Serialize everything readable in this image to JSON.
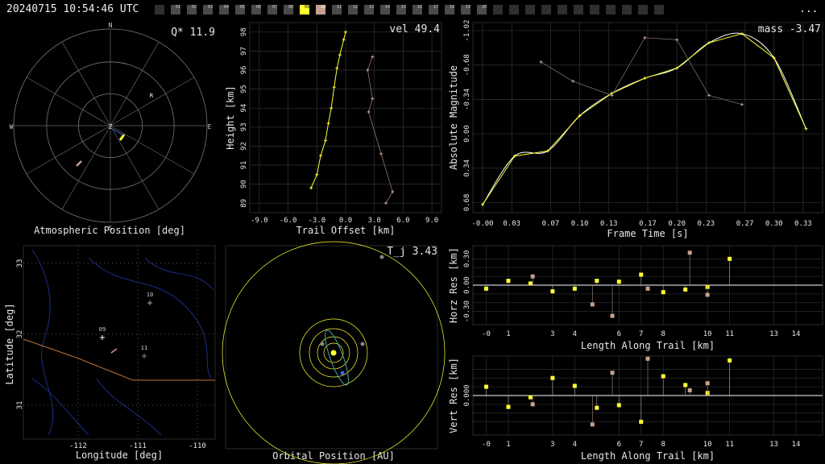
{
  "header": {
    "timestamp": "20240715 10:54:46 UTC",
    "menu_label": "...",
    "stations": [
      "",
      "01",
      "02",
      "03",
      "04",
      "05",
      "06",
      "07",
      "08",
      "09",
      "10",
      "11",
      "12",
      "13",
      "14",
      "15",
      "16",
      "17",
      "18",
      "19",
      "20",
      "",
      "",
      "",
      "",
      "",
      "",
      "",
      "",
      "",
      "",
      ""
    ],
    "stations_active": [
      1,
      2,
      3,
      4,
      5,
      6,
      7,
      8,
      9,
      10,
      11,
      12,
      13,
      14,
      15,
      16,
      17,
      18,
      19,
      20
    ],
    "station_selected": "09",
    "station_selected2": "10"
  },
  "colors": {
    "primary": "#ffff33",
    "secondary": "#c8a090",
    "grid": "#555555",
    "axis": "#dddddd"
  },
  "chart_data": [
    {
      "id": "sky",
      "type": "scatter",
      "title": "Atmospheric Position [deg]",
      "label": "Q* 11.9",
      "compass": [
        "N",
        "E",
        "S",
        "W",
        "Z"
      ],
      "marker": "R"
    },
    {
      "id": "height",
      "type": "line",
      "label": "vel 49.4",
      "xlabel": "Trail Offset [km]",
      "ylabel": "Height [km]",
      "xlim": [
        -10,
        10
      ],
      "ylim": [
        88.5,
        98.5
      ],
      "xticks": [
        "-9.0",
        "-6.0",
        "-3.0",
        "0.0",
        "3.0",
        "6.0",
        "9.0"
      ],
      "yticks": [
        "89",
        "90",
        "91",
        "92",
        "93",
        "94",
        "95",
        "96",
        "97",
        "98"
      ],
      "series": [
        {
          "x": [
            -3.6,
            -3.0,
            -2.6,
            -2.1,
            -1.8,
            -1.5,
            -1.2,
            -0.9,
            -0.6,
            -0.2,
            0.0
          ],
          "y": [
            89.8,
            90.5,
            91.5,
            92.3,
            93.2,
            94.0,
            95.1,
            96.1,
            96.8,
            97.6,
            98.0
          ]
        },
        {
          "x": [
            4.2,
            4.9,
            3.7,
            2.4,
            2.8,
            2.3,
            2.8
          ],
          "y": [
            89.0,
            89.6,
            91.6,
            93.8,
            94.5,
            96.0,
            96.7
          ]
        }
      ]
    },
    {
      "id": "mag",
      "type": "line",
      "label": "mass -3.47",
      "xlabel": "Frame Time [s]",
      "ylabel": "Absolute Magnitude",
      "xlim": [
        -0.01,
        0.35
      ],
      "ylim": [
        0.78,
        -1.1
      ],
      "xticks": [
        "-0.00",
        "0.03",
        "0.07",
        "0.10",
        "0.13",
        "0.17",
        "0.20",
        "0.23",
        "0.27",
        "0.30",
        "0.33"
      ],
      "yticks": [
        "0.68",
        "0.34",
        "0.00",
        "-0.34",
        "-0.68",
        "-1.02"
      ],
      "series": [
        {
          "x": [
            0.0,
            0.033,
            0.067,
            0.1,
            0.133,
            0.167,
            0.2,
            0.233,
            0.267,
            0.3,
            0.333
          ],
          "y": [
            0.7,
            0.22,
            0.17,
            -0.18,
            -0.4,
            -0.55,
            -0.65,
            -0.9,
            -0.99,
            -0.75,
            -0.05
          ]
        },
        {
          "x": [
            0.06,
            0.093,
            0.133,
            0.167,
            0.2,
            0.233,
            0.267
          ],
          "y": [
            -0.71,
            -0.52,
            -0.38,
            -0.95,
            -0.93,
            -0.38,
            -0.29
          ]
        }
      ]
    },
    {
      "id": "map",
      "type": "scatter",
      "xlabel": "Longitude [deg]",
      "ylabel": "Latitude [deg]",
      "xticks": [
        "-112",
        "-111",
        "-110"
      ],
      "yticks": [
        "33",
        "32",
        "31"
      ],
      "points": [
        "09",
        "10",
        "11"
      ]
    },
    {
      "id": "orbit",
      "type": "scatter",
      "title": "Orbital Position [AU]",
      "label": "T_j 3.43"
    },
    {
      "id": "horz",
      "type": "scatter",
      "xlabel": "Length Along Trail [km]",
      "ylabel": "Horz Res [km]",
      "xlim": [
        -0.6,
        15.2
      ],
      "ylim": [
        -0.45,
        0.45
      ],
      "xticks": [
        "-0",
        "1",
        "3",
        "4",
        "6",
        "7",
        "8",
        "10",
        "11",
        "13",
        "14"
      ],
      "yticks": [
        "0.30",
        "0.00",
        "-0.30"
      ],
      "series": [
        {
          "x": [
            0.0,
            1.0,
            2.0,
            3.0,
            4.0,
            5.0,
            6.0,
            7.0,
            8.0,
            9.0,
            10.0,
            11.0
          ],
          "y": [
            -0.04,
            0.05,
            0.02,
            -0.07,
            -0.04,
            0.05,
            0.04,
            0.12,
            -0.08,
            -0.05,
            -0.02,
            0.3
          ]
        },
        {
          "x": [
            2.1,
            4.8,
            5.7,
            7.3,
            9.2,
            10.0
          ],
          "y": [
            0.1,
            -0.22,
            -0.35,
            -0.04,
            0.37,
            -0.11
          ]
        }
      ]
    },
    {
      "id": "vert",
      "type": "scatter",
      "xlabel": "Length Along Trail [km]",
      "ylabel": "Vert Res [km]",
      "xlim": [
        -0.6,
        15.2
      ],
      "ylim": [
        -0.45,
        0.45
      ],
      "xticks": [
        "-0",
        "1",
        "3",
        "4",
        "6",
        "7",
        "8",
        "10",
        "11",
        "13",
        "14"
      ],
      "yticks": [
        "0.000"
      ],
      "series": [
        {
          "x": [
            0.0,
            1.0,
            2.0,
            3.0,
            4.0,
            5.0,
            6.0,
            7.0,
            8.0,
            9.0,
            10.0,
            11.0
          ],
          "y": [
            0.1,
            -0.13,
            -0.02,
            0.2,
            0.11,
            -0.14,
            -0.11,
            -0.3,
            0.22,
            0.12,
            0.03,
            0.4
          ]
        },
        {
          "x": [
            2.1,
            4.8,
            5.7,
            7.3,
            9.2,
            10.0
          ],
          "y": [
            -0.1,
            -0.33,
            0.26,
            0.42,
            0.06,
            0.14
          ]
        }
      ]
    }
  ],
  "labels": {
    "sky_title": "Atmospheric Position [deg]",
    "sky_q": "Q* 11.9",
    "map_xlabel": "Longitude [deg]",
    "map_ylabel": "Latitude [deg]",
    "orbit_title": "Orbital Position [AU]",
    "orbit_tj": "T_j 3.43"
  }
}
